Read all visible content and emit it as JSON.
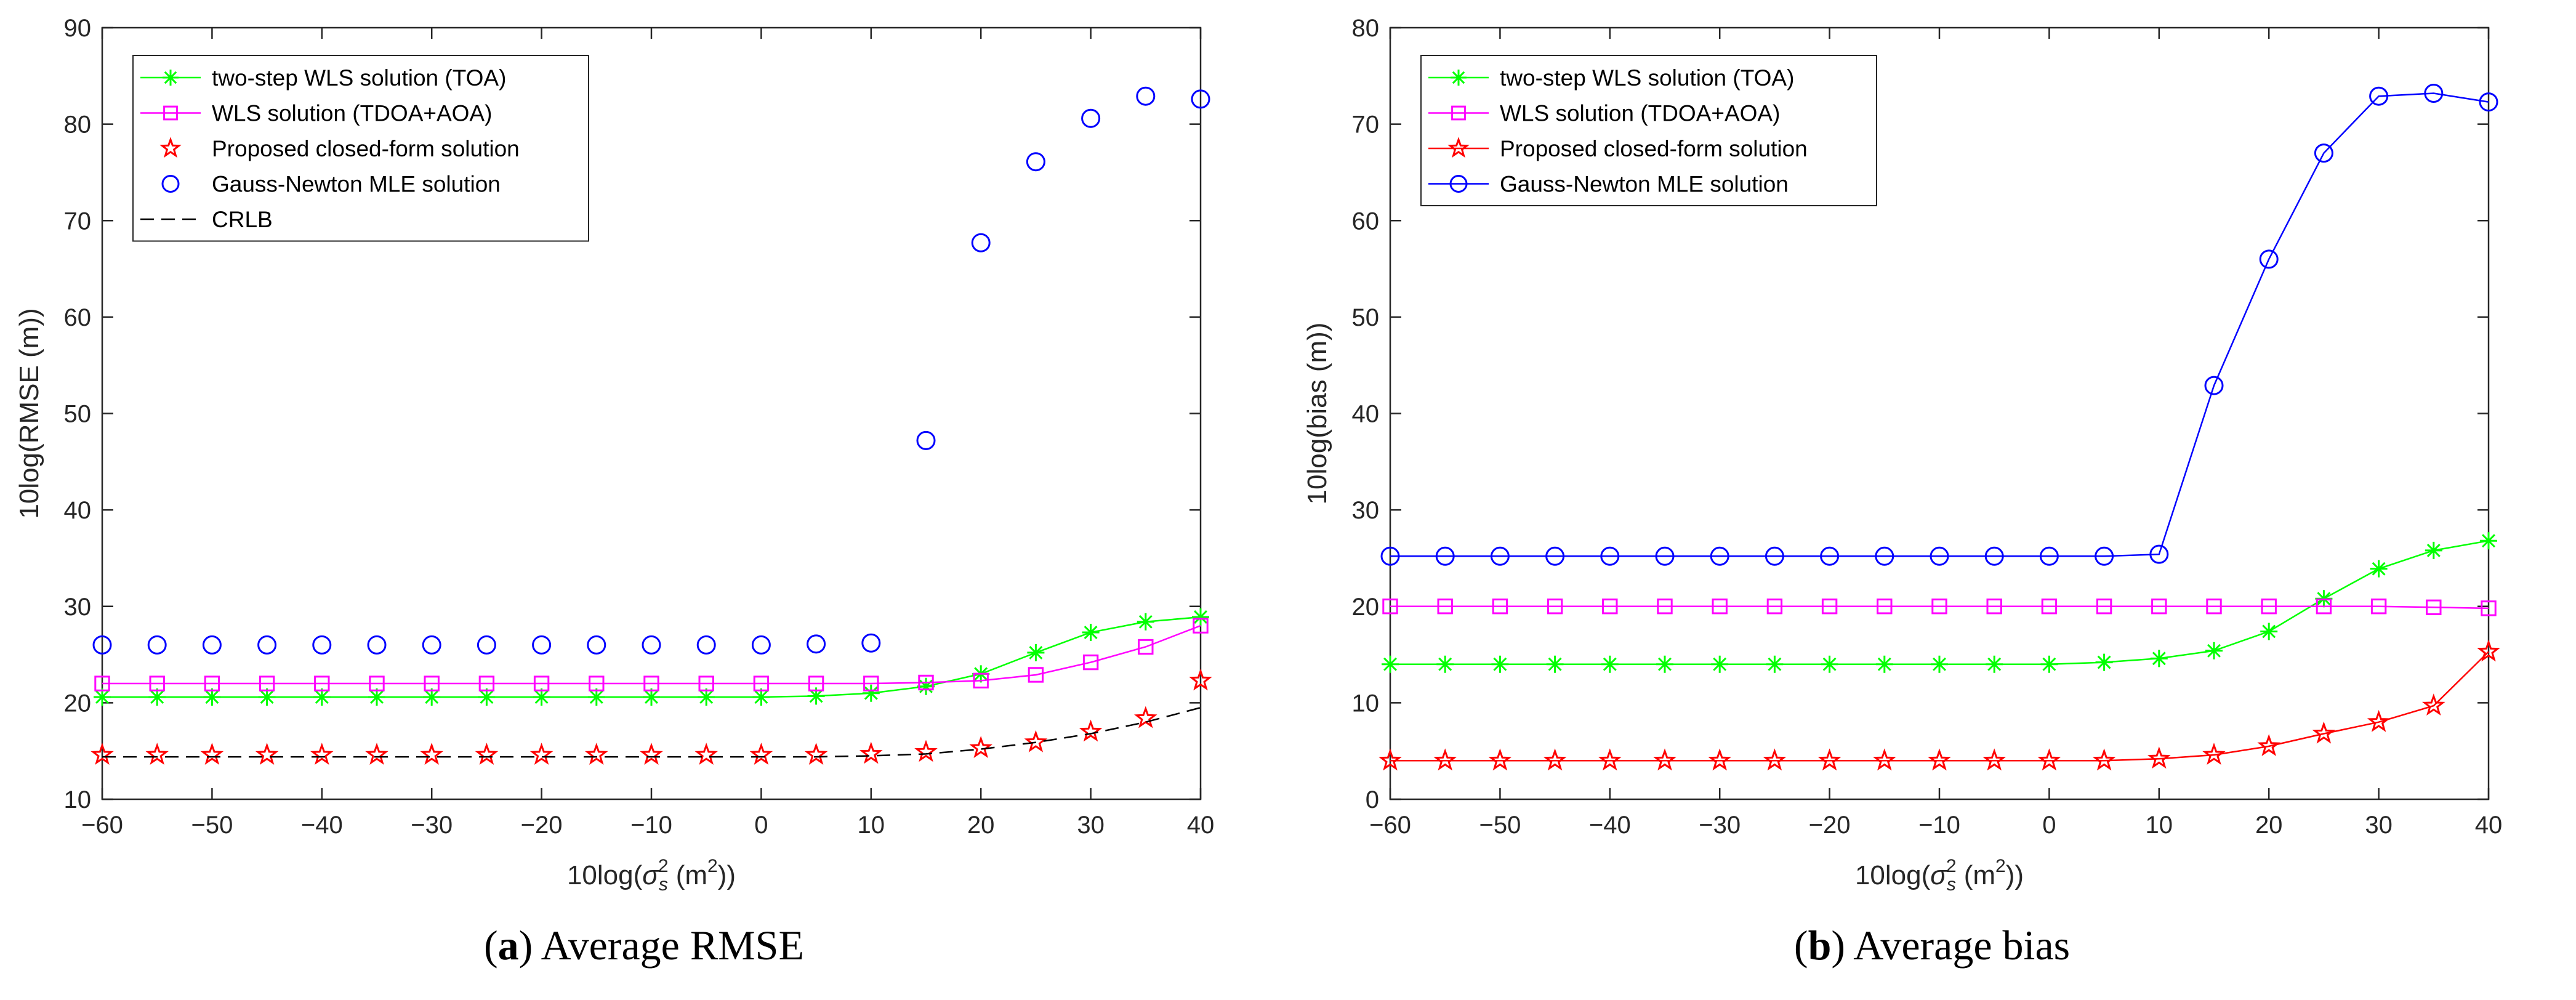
{
  "chart_data": [
    {
      "id": "a",
      "type": "line",
      "caption_letter": "a",
      "caption_text": "Average RMSE",
      "xlabel_prefix": "10log(",
      "xlabel_sigma": "σ",
      "xlabel_sub": "s",
      "xlabel_sup": "2",
      "xlabel_suffix": " (m",
      "xlabel_unit_sup": "2",
      "xlabel_end": "))",
      "ylabel": "10log(RMSE (m))",
      "xlim": [
        -60,
        40
      ],
      "ylim": [
        10,
        90
      ],
      "xticks": [
        -60,
        -50,
        -40,
        -30,
        -20,
        -10,
        0,
        10,
        20,
        30,
        40
      ],
      "yticks": [
        10,
        20,
        30,
        40,
        50,
        60,
        70,
        80,
        90
      ],
      "grid": false,
      "legend_position": "top-left",
      "x": [
        -60,
        -55,
        -50,
        -45,
        -40,
        -35,
        -30,
        -25,
        -20,
        -15,
        -10,
        -5,
        0,
        5,
        10,
        15,
        20,
        25,
        30,
        35,
        40
      ],
      "series": [
        {
          "name": "two-step WLS solution (TOA)",
          "color": "#00ff00",
          "marker": "asterisk",
          "line": "solid",
          "values": [
            20.6,
            20.6,
            20.6,
            20.6,
            20.6,
            20.6,
            20.6,
            20.6,
            20.6,
            20.6,
            20.6,
            20.6,
            20.6,
            20.7,
            21.0,
            21.7,
            23.0,
            25.2,
            27.3,
            28.4,
            28.9
          ]
        },
        {
          "name": "WLS solution (TDOA+AOA)",
          "color": "#ff00ff",
          "marker": "square",
          "line": "solid",
          "values": [
            22.0,
            22.0,
            22.0,
            22.0,
            22.0,
            22.0,
            22.0,
            22.0,
            22.0,
            22.0,
            22.0,
            22.0,
            22.0,
            22.0,
            22.0,
            22.1,
            22.3,
            22.9,
            24.2,
            25.8,
            28.0
          ]
        },
        {
          "name": "Proposed closed-form solution",
          "color": "#ff0000",
          "marker": "star",
          "line": "none",
          "values": [
            14.6,
            14.6,
            14.6,
            14.6,
            14.6,
            14.6,
            14.6,
            14.6,
            14.6,
            14.6,
            14.6,
            14.6,
            14.6,
            14.6,
            14.7,
            14.9,
            15.3,
            15.9,
            17.0,
            18.4,
            22.3
          ]
        },
        {
          "name": "Gauss-Newton MLE solution",
          "color": "#0000ff",
          "marker": "circle",
          "line": "none",
          "values": [
            26.0,
            26.0,
            26.0,
            26.0,
            26.0,
            26.0,
            26.0,
            26.0,
            26.0,
            26.0,
            26.0,
            26.0,
            26.0,
            26.1,
            26.2,
            47.2,
            67.7,
            76.1,
            80.6,
            82.9,
            82.6
          ]
        },
        {
          "name": "CRLB",
          "color": "#000000",
          "marker": "none",
          "line": "dashed",
          "values": [
            14.4,
            14.4,
            14.4,
            14.4,
            14.4,
            14.4,
            14.4,
            14.4,
            14.4,
            14.4,
            14.4,
            14.4,
            14.4,
            14.4,
            14.5,
            14.7,
            15.2,
            15.9,
            16.8,
            18.0,
            19.5
          ]
        }
      ]
    },
    {
      "id": "b",
      "type": "line",
      "caption_letter": "b",
      "caption_text": "Average bias",
      "xlabel_prefix": "10log(",
      "xlabel_sigma": "σ",
      "xlabel_sub": "s",
      "xlabel_sup": "2",
      "xlabel_suffix": " (m",
      "xlabel_unit_sup": "2",
      "xlabel_end": "))",
      "ylabel": "10log(bias (m))",
      "xlim": [
        -60,
        40
      ],
      "ylim": [
        0,
        80
      ],
      "xticks": [
        -60,
        -50,
        -40,
        -30,
        -20,
        -10,
        0,
        10,
        20,
        30,
        40
      ],
      "yticks": [
        0,
        10,
        20,
        30,
        40,
        50,
        60,
        70,
        80
      ],
      "grid": false,
      "legend_position": "top-left",
      "x": [
        -60,
        -55,
        -50,
        -45,
        -40,
        -35,
        -30,
        -25,
        -20,
        -15,
        -10,
        -5,
        0,
        5,
        10,
        15,
        20,
        25,
        30,
        35,
        40
      ],
      "series": [
        {
          "name": "two-step WLS solution (TOA)",
          "color": "#00ff00",
          "marker": "asterisk",
          "line": "solid",
          "values": [
            14.0,
            14.0,
            14.0,
            14.0,
            14.0,
            14.0,
            14.0,
            14.0,
            14.0,
            14.0,
            14.0,
            14.0,
            14.0,
            14.2,
            14.6,
            15.4,
            17.4,
            20.8,
            23.9,
            25.8,
            26.8
          ]
        },
        {
          "name": "WLS solution (TDOA+AOA)",
          "color": "#ff00ff",
          "marker": "square",
          "line": "solid",
          "values": [
            20.0,
            20.0,
            20.0,
            20.0,
            20.0,
            20.0,
            20.0,
            20.0,
            20.0,
            20.0,
            20.0,
            20.0,
            20.0,
            20.0,
            20.0,
            20.0,
            20.0,
            20.0,
            20.0,
            19.9,
            19.8
          ]
        },
        {
          "name": "Proposed closed-form solution",
          "color": "#ff0000",
          "marker": "star",
          "line": "solid",
          "values": [
            4.0,
            4.0,
            4.0,
            4.0,
            4.0,
            4.0,
            4.0,
            4.0,
            4.0,
            4.0,
            4.0,
            4.0,
            4.0,
            4.0,
            4.2,
            4.6,
            5.5,
            6.8,
            8.0,
            9.7,
            15.3
          ]
        },
        {
          "name": "Gauss-Newton MLE solution",
          "color": "#0000ff",
          "marker": "circle",
          "line": "solid",
          "values": [
            25.2,
            25.2,
            25.2,
            25.2,
            25.2,
            25.2,
            25.2,
            25.2,
            25.2,
            25.2,
            25.2,
            25.2,
            25.2,
            25.2,
            25.4,
            42.9,
            56.0,
            67.0,
            72.9,
            73.2,
            72.3
          ]
        }
      ]
    }
  ]
}
